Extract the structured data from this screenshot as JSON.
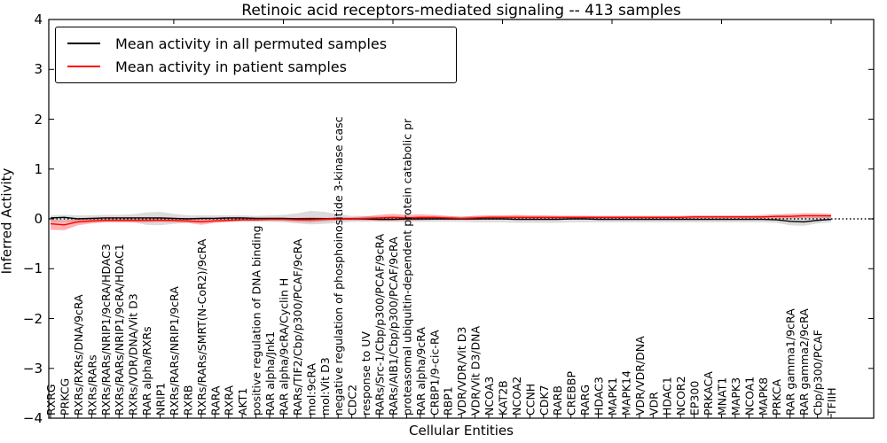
{
  "figure": {
    "title": "Retinoic acid receptors-mediated signaling -- 413 samples",
    "xlabel": "Cellular Entities",
    "ylabel": "Inferred Activity"
  },
  "legend": {
    "position": "upper left",
    "items": [
      {
        "label": "Mean activity in all permuted samples",
        "color": "#000000"
      },
      {
        "label": "Mean activity in patient samples",
        "color": "#ff0000"
      }
    ]
  },
  "chart_data": {
    "type": "line",
    "title": "Retinoic acid receptors-mediated signaling -- 413 samples",
    "xlabel": "Cellular Entities",
    "ylabel": "Inferred Activity",
    "ylim": [
      -4,
      4
    ],
    "yticks": [
      -4,
      -3,
      -2,
      -1,
      0,
      1,
      2,
      3,
      4
    ],
    "grid": false,
    "legend_position": "upper left",
    "zero_line": {
      "y": 0,
      "style": "dotted",
      "color": "#000000"
    },
    "categories": [
      "RXRG",
      "PRKCG",
      "RXRs/RXRs/DNA/9cRA",
      "RXRs/RARs",
      "RXRs/RARs/NRIP1/9cRA/HDAC3",
      "RXRs/RARs/NRIP1/9cRA/HDAC1",
      "RXRs/VDR/DNA/Vit D3",
      "RAR alpha/RXRs",
      "NRIP1",
      "RXRs/RARs/NRIP1/9cRA",
      "RXRB",
      "RXRs/RARs/SMRT(N-CoR2)/9cRA",
      "RARA",
      "RXRA",
      "AKT1",
      "positive regulation of DNA binding",
      "RAR alpha/Jnk1",
      "RAR alpha/9cRA/Cyclin H",
      "RARs/TIF2/Cbp/p300/PCAF/9cRA",
      "mol:9cRA",
      "mol:Vit D3",
      "negative regulation of phosphoinositide 3-kinase casc",
      "CDC2",
      "response to UV",
      "RARs/Src-1/Cbp/p300/PCAF/9cRA",
      "RARs/AIB1/Cbp/p300/PCAF/9cRA",
      "proteasomal ubiquitin-dependent protein catabolic pr",
      "RAR alpha/9cRA",
      "CRBP1/9-cic-RA",
      "RBP1",
      "VDR/VDR/Vit D3",
      "VDR/Vit D3/DNA",
      "NCOA3",
      "KAT2B",
      "NCOA2",
      "CCNH",
      "CDK7",
      "RARB",
      "CREBBP",
      "RARG",
      "HDAC3",
      "MAPK1",
      "MAPK14",
      "VDR/VDR/DNA",
      "VDR",
      "HDAC1",
      "NCOR2",
      "EP300",
      "PRKACA",
      "MNAT1",
      "MAPK3",
      "NCOA1",
      "MAPK8",
      "PRKCA",
      "RAR gamma1/9cRA",
      "RAR gamma2/9cRA",
      "Cbp/p300/PCAF",
      "TFIIH"
    ],
    "series": [
      {
        "id": "permuted",
        "name": "Mean activity in all permuted samples",
        "color": "#000000",
        "band_color": "#999999",
        "band_opacity": 0.35,
        "values": [
          0.02,
          0.03,
          0.0,
          0.01,
          0.02,
          0.02,
          0.02,
          0.02,
          0.02,
          0.01,
          0.0,
          0.01,
          0.01,
          0.02,
          0.02,
          0.01,
          0.01,
          0.01,
          0.0,
          0.0,
          0.0,
          0.0,
          0.0,
          0.0,
          -0.01,
          -0.01,
          0.0,
          0.0,
          0.0,
          0.0,
          0.0,
          0.0,
          0.0,
          0.0,
          -0.01,
          -0.01,
          -0.01,
          -0.01,
          0.0,
          0.0,
          -0.01,
          -0.01,
          -0.01,
          -0.01,
          -0.01,
          -0.01,
          -0.01,
          -0.01,
          -0.01,
          -0.01,
          -0.01,
          -0.01,
          -0.01,
          -0.02,
          -0.05,
          -0.06,
          -0.03,
          -0.01
        ],
        "band_low": [
          -0.06,
          -0.05,
          -0.08,
          -0.07,
          -0.06,
          -0.06,
          -0.07,
          -0.12,
          -0.13,
          -0.1,
          -0.08,
          -0.07,
          -0.06,
          -0.06,
          -0.05,
          -0.05,
          -0.06,
          -0.07,
          -0.09,
          -0.11,
          -0.1,
          -0.08,
          -0.06,
          -0.06,
          -0.06,
          -0.06,
          -0.06,
          -0.06,
          -0.06,
          -0.06,
          -0.06,
          -0.07,
          -0.07,
          -0.07,
          -0.08,
          -0.08,
          -0.08,
          -0.08,
          -0.07,
          -0.07,
          -0.07,
          -0.07,
          -0.07,
          -0.07,
          -0.07,
          -0.07,
          -0.07,
          -0.07,
          -0.07,
          -0.07,
          -0.07,
          -0.07,
          -0.07,
          -0.08,
          -0.13,
          -0.14,
          -0.09,
          -0.07
        ],
        "band_high": [
          0.07,
          0.08,
          0.07,
          0.07,
          0.08,
          0.08,
          0.09,
          0.13,
          0.14,
          0.1,
          0.07,
          0.07,
          0.07,
          0.07,
          0.07,
          0.06,
          0.07,
          0.08,
          0.11,
          0.16,
          0.14,
          0.09,
          0.06,
          0.06,
          0.05,
          0.05,
          0.05,
          0.05,
          0.05,
          0.05,
          0.05,
          0.06,
          0.06,
          0.06,
          0.06,
          0.06,
          0.06,
          0.06,
          0.06,
          0.06,
          0.05,
          0.05,
          0.05,
          0.05,
          0.05,
          0.05,
          0.05,
          0.05,
          0.05,
          0.05,
          0.05,
          0.05,
          0.05,
          0.05,
          0.04,
          0.04,
          0.04,
          0.05
        ]
      },
      {
        "id": "patient",
        "name": "Mean activity in patient samples",
        "color": "#ff0000",
        "band_color": "#ff0000",
        "band_opacity": 0.3,
        "values": [
          -0.1,
          -0.12,
          -0.06,
          -0.04,
          -0.03,
          -0.03,
          -0.03,
          -0.03,
          -0.03,
          -0.03,
          -0.04,
          -0.06,
          -0.04,
          -0.03,
          -0.02,
          -0.02,
          -0.01,
          -0.01,
          -0.02,
          -0.02,
          -0.01,
          0.0,
          0.0,
          0.01,
          0.02,
          0.03,
          0.02,
          0.03,
          0.03,
          0.02,
          0.01,
          0.02,
          0.03,
          0.03,
          0.03,
          0.03,
          0.03,
          0.03,
          0.03,
          0.03,
          0.03,
          0.03,
          0.03,
          0.03,
          0.03,
          0.03,
          0.03,
          0.04,
          0.04,
          0.04,
          0.04,
          0.04,
          0.04,
          0.05,
          0.05,
          0.06,
          0.06,
          0.06
        ],
        "band_low": [
          -0.22,
          -0.23,
          -0.13,
          -0.09,
          -0.07,
          -0.07,
          -0.07,
          -0.07,
          -0.06,
          -0.07,
          -0.08,
          -0.12,
          -0.08,
          -0.06,
          -0.05,
          -0.05,
          -0.04,
          -0.04,
          -0.06,
          -0.07,
          -0.05,
          -0.03,
          -0.03,
          -0.03,
          -0.04,
          -0.04,
          -0.04,
          -0.03,
          -0.02,
          -0.02,
          -0.02,
          -0.02,
          -0.01,
          -0.01,
          -0.02,
          -0.02,
          -0.01,
          -0.01,
          0.0,
          0.0,
          0.0,
          0.0,
          0.0,
          0.0,
          0.0,
          0.0,
          0.0,
          0.01,
          0.01,
          0.01,
          0.01,
          0.01,
          0.01,
          0.01,
          0.01,
          0.02,
          0.02,
          0.02
        ],
        "band_high": [
          -0.02,
          -0.03,
          -0.01,
          0.0,
          0.0,
          0.0,
          0.0,
          0.0,
          0.01,
          0.01,
          0.0,
          0.0,
          0.0,
          0.01,
          0.01,
          0.01,
          0.02,
          0.02,
          0.02,
          0.03,
          0.02,
          0.03,
          0.03,
          0.05,
          0.08,
          0.1,
          0.08,
          0.09,
          0.08,
          0.06,
          0.04,
          0.06,
          0.07,
          0.07,
          0.08,
          0.07,
          0.07,
          0.06,
          0.06,
          0.06,
          0.06,
          0.06,
          0.06,
          0.06,
          0.06,
          0.06,
          0.06,
          0.07,
          0.07,
          0.07,
          0.07,
          0.07,
          0.08,
          0.09,
          0.1,
          0.11,
          0.11,
          0.1
        ]
      }
    ]
  }
}
